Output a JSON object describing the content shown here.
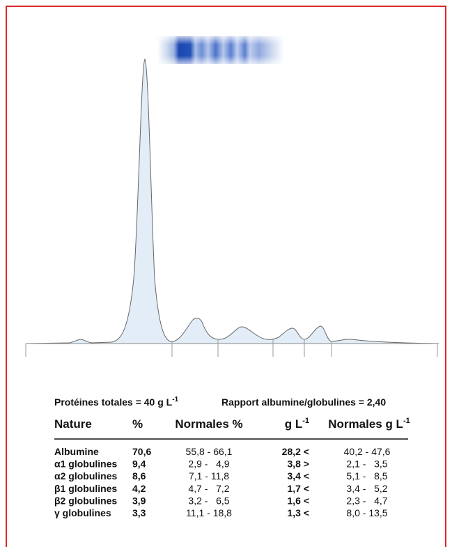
{
  "header": {
    "total": "Protéines totales = 40 g L",
    "total_exp": "-1",
    "ratio": "Rapport albumine/globulines = 2,40"
  },
  "table": {
    "columns": [
      "Nature",
      "%",
      "Normales %",
      "g L",
      "Normales g L"
    ],
    "column_exps": {
      "3": "-1",
      "4": "-1"
    },
    "rows": [
      [
        "Albumine",
        "70,6",
        "55,8 - 66,1",
        "28,2 <",
        "40,2 - 47,6"
      ],
      [
        "α1 globulines",
        "9,4",
        "2,9 -   4,9",
        "3,8 >",
        "2,1 -   3,5"
      ],
      [
        "α2 globulines",
        "8,6",
        "7,1 - 11,8",
        "3,4 <",
        "5,1 -   8,5"
      ],
      [
        "β1 globulines",
        "4,2",
        "4,7 -   7,2",
        "1,7 <",
        "3,4 -   5,2"
      ],
      [
        "β2 globulines",
        "3,9",
        "3,2 -   6,5",
        "1,6 <",
        "2,3 -   4,7"
      ],
      [
        "γ globulines",
        "3,3",
        "11,1 - 18,8",
        "1,3 <",
        "8,0 - 13,5"
      ]
    ]
  }
}
